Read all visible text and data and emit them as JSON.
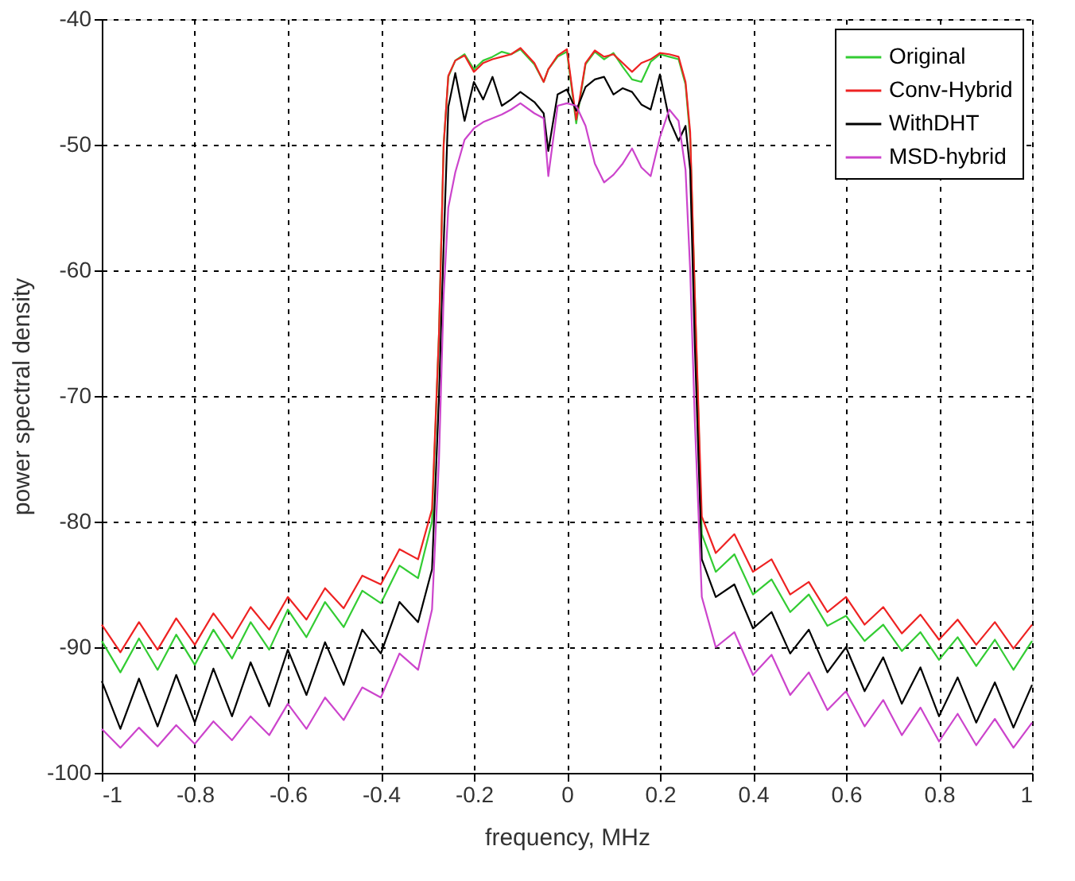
{
  "chart_data": {
    "type": "line",
    "xlabel": "frequency, MHz",
    "ylabel": "power spectral density",
    "x": [
      -1,
      -0.96,
      -0.92,
      -0.88,
      -0.84,
      -0.8,
      -0.76,
      -0.72,
      -0.68,
      -0.64,
      -0.6,
      -0.56,
      -0.52,
      -0.48,
      -0.44,
      -0.4,
      -0.36,
      -0.32,
      -0.29,
      -0.275,
      -0.265,
      -0.255,
      -0.24,
      -0.22,
      -0.2,
      -0.18,
      -0.16,
      -0.14,
      -0.12,
      -0.1,
      -0.07,
      -0.05,
      -0.04,
      -0.02,
      0,
      0.02,
      0.04,
      0.06,
      0.08,
      0.1,
      0.12,
      0.14,
      0.16,
      0.18,
      0.2,
      0.22,
      0.24,
      0.255,
      0.265,
      0.275,
      0.29,
      0.32,
      0.36,
      0.4,
      0.44,
      0.48,
      0.52,
      0.56,
      0.6,
      0.64,
      0.68,
      0.72,
      0.76,
      0.8,
      0.84,
      0.88,
      0.92,
      0.96,
      1.0
    ],
    "series": [
      {
        "name": "Original",
        "color": "#33cc33",
        "values": [
          -89.5,
          -92,
          -89.3,
          -91.8,
          -89,
          -91.4,
          -88.6,
          -90.9,
          -88,
          -90.2,
          -87,
          -89.2,
          -86.4,
          -88.4,
          -85.5,
          -86.5,
          -83.5,
          -84.5,
          -80,
          -65,
          -50,
          -44.6,
          -43.3,
          -42.8,
          -44,
          -43.3,
          -43,
          -42.6,
          -42.8,
          -42.4,
          -43.6,
          -45,
          -44,
          -43,
          -42.6,
          -48.3,
          -43.6,
          -42.6,
          -43.2,
          -42.7,
          -43.8,
          -44.8,
          -45,
          -43.4,
          -42.8,
          -43,
          -43.2,
          -45.2,
          -49.5,
          -62,
          -81,
          -84,
          -82.6,
          -85.8,
          -84.6,
          -87.2,
          -85.8,
          -88.3,
          -87.5,
          -89.5,
          -88.2,
          -90.3,
          -88.8,
          -91,
          -89.2,
          -91.5,
          -89.4,
          -91.8,
          -89.5
        ]
      },
      {
        "name": "Conv-Hybrid",
        "color": "#ee2222",
        "values": [
          -88.2,
          -90.4,
          -88,
          -90.2,
          -87.7,
          -89.8,
          -87.3,
          -89.3,
          -86.8,
          -88.6,
          -86,
          -87.8,
          -85.3,
          -86.9,
          -84.3,
          -85,
          -82.2,
          -83,
          -79,
          -65,
          -50,
          -44.5,
          -43.3,
          -42.9,
          -44.2,
          -43.5,
          -43.2,
          -43,
          -42.8,
          -42.3,
          -43.5,
          -45,
          -44,
          -42.9,
          -42.4,
          -48,
          -43.5,
          -42.5,
          -43,
          -42.8,
          -43.5,
          -44.2,
          -43.5,
          -43.2,
          -42.7,
          -42.8,
          -43,
          -45,
          -49,
          -62,
          -79.6,
          -82.5,
          -81,
          -84,
          -83,
          -85.8,
          -84.8,
          -87.2,
          -86,
          -88.2,
          -86.8,
          -88.9,
          -87.4,
          -89.4,
          -87.8,
          -89.8,
          -88,
          -90.1,
          -88.2
        ]
      },
      {
        "name": "WithDHT",
        "color": "#000000",
        "values": [
          -92.7,
          -96.5,
          -92.5,
          -96.3,
          -92.2,
          -96,
          -91.7,
          -95.5,
          -91.2,
          -94.7,
          -90.2,
          -93.8,
          -89.6,
          -93,
          -88.6,
          -90.5,
          -86.4,
          -88,
          -83.8,
          -70,
          -58,
          -47,
          -44.3,
          -48.1,
          -45,
          -46.4,
          -44.6,
          -46.9,
          -46.4,
          -45.8,
          -46.6,
          -47.5,
          -50.5,
          -46,
          -45.6,
          -47.3,
          -45.4,
          -44.8,
          -44.6,
          -46,
          -45.5,
          -45.8,
          -46.8,
          -47.2,
          -44.4,
          -48,
          -49.7,
          -48.5,
          -52,
          -66,
          -83,
          -86,
          -85,
          -88.5,
          -87.2,
          -90.5,
          -88.6,
          -92,
          -90,
          -93.5,
          -90.8,
          -94.5,
          -91.6,
          -95.5,
          -92.4,
          -96,
          -92.8,
          -96.4,
          -93
        ]
      },
      {
        "name": "MSD-hybrid",
        "color": "#cc44cc",
        "values": [
          -96.5,
          -98,
          -96.4,
          -97.9,
          -96.2,
          -97.7,
          -95.9,
          -97.4,
          -95.5,
          -97,
          -94.5,
          -96.5,
          -94,
          -95.8,
          -93.2,
          -94,
          -90.5,
          -91.8,
          -87,
          -75,
          -62,
          -55,
          -52.2,
          -49.6,
          -48.7,
          -48.2,
          -47.9,
          -47.6,
          -47.2,
          -46.7,
          -47.5,
          -47.9,
          -52.5,
          -46.9,
          -46.7,
          -46.9,
          -48.5,
          -51.5,
          -53,
          -52.4,
          -51.5,
          -50.3,
          -51.8,
          -52.5,
          -49.4,
          -47.2,
          -48.1,
          -52,
          -60,
          -72,
          -86,
          -90,
          -88.8,
          -92.2,
          -90.6,
          -93.8,
          -92,
          -95,
          -93.5,
          -96.3,
          -94.2,
          -97,
          -94.8,
          -97.5,
          -95.3,
          -97.8,
          -95.7,
          -98,
          -96
        ]
      }
    ],
    "xlim": [
      -1,
      1
    ],
    "xticks": [
      -1,
      -0.8,
      -0.6,
      -0.4,
      -0.2,
      0,
      0.2,
      0.4,
      0.6,
      0.8,
      1
    ],
    "ylim": [
      -100,
      -40
    ],
    "yticks": [
      -100,
      -90,
      -80,
      -70,
      -60,
      -50,
      -40
    ],
    "grid": true,
    "legend": "top right",
    "marker": "none",
    "line_style": "solid"
  }
}
